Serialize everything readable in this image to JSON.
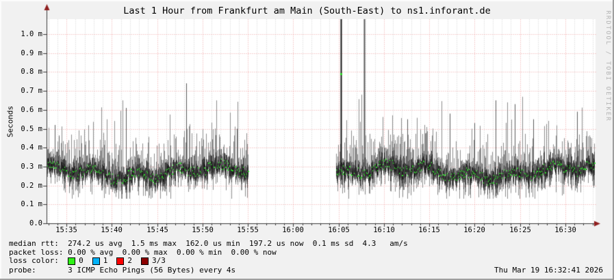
{
  "header": {
    "title": "Last 1 Hour from Frankfurt am Main (South-East) to ns1.inforant.de"
  },
  "watermark": "RRDTOOL / TOBI OETIKER",
  "footer": {
    "timestamp": "Thu Mar 19 16:32:41 2026"
  },
  "chart_data": {
    "type": "line",
    "subtype": "smokeping-latency-smoke-plot",
    "title": "Last 1 Hour from Frankfurt am Main (South-East) to ns1.inforant.de",
    "xlabel": "",
    "ylabel": "Seconds",
    "grid": "on",
    "y_axis": {
      "unit_suffix": "m",
      "range_ms": [
        0.0,
        1.08
      ],
      "ticks": [
        {
          "v": 0.0,
          "label": "0.0"
        },
        {
          "v": 0.1,
          "label": "0.1 m"
        },
        {
          "v": 0.2,
          "label": "0.2 m"
        },
        {
          "v": 0.3,
          "label": "0.3 m"
        },
        {
          "v": 0.4,
          "label": "0.4 m"
        },
        {
          "v": 0.5,
          "label": "0.5 m"
        },
        {
          "v": 0.6,
          "label": "0.6 m"
        },
        {
          "v": 0.7,
          "label": "0.7 m"
        },
        {
          "v": 0.8,
          "label": "0.8 m"
        },
        {
          "v": 0.9,
          "label": "0.9 m"
        },
        {
          "v": 1.0,
          "label": "1.0 m"
        }
      ]
    },
    "x_axis": {
      "range_time": [
        "15:32.8",
        "16:33.3"
      ],
      "minor_step_min": 1,
      "major_step_min": 5,
      "ticks": [
        {
          "time": "15:35",
          "label": "15:35"
        },
        {
          "time": "15:40",
          "label": "15:40"
        },
        {
          "time": "15:45",
          "label": "15:45"
        },
        {
          "time": "15:50",
          "label": "15:50"
        },
        {
          "time": "15:55",
          "label": "15:55"
        },
        {
          "time": "16:00",
          "label": "16:00"
        },
        {
          "time": "16:05",
          "label": "16:05"
        },
        {
          "time": "16:10",
          "label": "16:10"
        },
        {
          "time": "16:15",
          "label": "16:15"
        },
        {
          "time": "16:20",
          "label": "16:20"
        },
        {
          "time": "16:25",
          "label": "16:25"
        },
        {
          "time": "16:30",
          "label": "16:30"
        }
      ]
    },
    "series": [
      {
        "name": "median rtt with smoke band (min-max per sample)",
        "segments": [
          {
            "start": "15:32.8",
            "end": "15:55.0",
            "median_ms": 0.27,
            "band_ms": [
              0.15,
              0.45
            ],
            "seed": 1337
          },
          {
            "start": "16:04.7",
            "end": "16:33.2",
            "median_ms": 0.27,
            "band_ms": [
              0.15,
              0.48
            ],
            "seed": 9001
          }
        ],
        "gap": {
          "start": "15:55.0",
          "end": "16:04.7"
        }
      }
    ],
    "spikes": [
      {
        "time": "15:33.7",
        "value_ms": 0.52
      },
      {
        "time": "15:34.2",
        "value_ms": 0.46
      },
      {
        "time": "15:41.6",
        "value_ms": 0.61
      },
      {
        "time": "15:48.2",
        "value_ms": 0.74
      },
      {
        "time": "15:53.8",
        "value_ms": 0.5
      },
      {
        "time": "16:05.3",
        "value_ms": 1.08,
        "clipped": true,
        "color": "#141414",
        "width": 2,
        "median_dot_ms": 0.79
      },
      {
        "time": "16:07.8",
        "value_ms": 1.08,
        "clipped": true,
        "color": "#5a5a5a",
        "width": 2
      },
      {
        "time": "16:12.6",
        "value_ms": 0.55
      },
      {
        "time": "16:17.3",
        "value_ms": 0.58
      },
      {
        "time": "16:20.0",
        "value_ms": 0.53
      },
      {
        "time": "16:22.3",
        "value_ms": 0.65
      },
      {
        "time": "16:24.4",
        "value_ms": 0.63
      },
      {
        "time": "16:26.5",
        "value_ms": 0.55
      },
      {
        "time": "16:31.3",
        "value_ms": 0.59
      }
    ],
    "colors": {
      "plot_background": "#ffffff",
      "outer_background": "#f1f1f1",
      "major_grid": "#f2a0a0",
      "minor_grid": "#cfcfcf",
      "axis": "#363636",
      "arrow": "#8f1f1f",
      "smoke_outer": "#8d8d8d",
      "smoke_inner": "#404040",
      "smoke_dark": "#1e1e1e",
      "median": "#2fd72a"
    }
  },
  "legend": {
    "median_line": "median rtt:  274.2 us avg  1.5 ms max  162.0 us min  197.2 us now  0.1 ms sd  4.3   am/s",
    "packet_loss_line": "packet loss: 0.00 % avg  0.00 % max  0.00 % min  0.00 % now",
    "loss_color_label": "loss color:  ",
    "loss_colors": [
      {
        "label": "0",
        "color": "#2ff217"
      },
      {
        "label": "1",
        "color": "#00b2f8"
      },
      {
        "label": "2",
        "color": "#fa0000"
      },
      {
        "label": "3/3",
        "color": "#8c0000"
      }
    ],
    "probe_line": "probe:       3 ICMP Echo Pings (56 Bytes) every 4s"
  },
  "stats": {
    "median_rtt": {
      "avg": "274.2 us",
      "max": "1.5 ms",
      "min": "162.0 us",
      "now": "197.2 us",
      "sd": "0.1 ms",
      "am_per_s": "4.3"
    },
    "packet_loss": {
      "avg": "0.00 %",
      "max": "0.00 %",
      "min": "0.00 %",
      "now": "0.00 %"
    }
  }
}
